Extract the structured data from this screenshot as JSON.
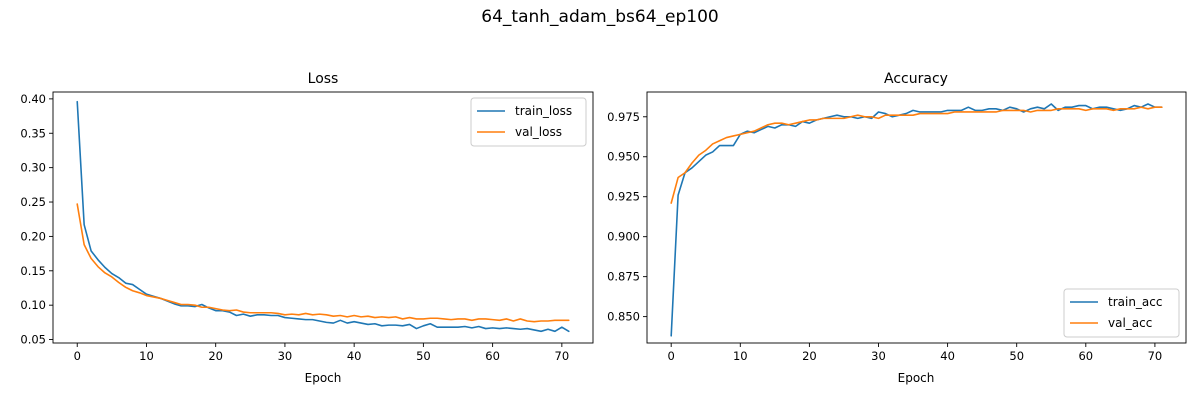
{
  "figure": {
    "suptitle": "64_tanh_adam_bs64_ep100"
  },
  "colors": {
    "train": "#1f77b4",
    "val": "#ff7f0e"
  },
  "chart_data": [
    {
      "type": "line",
      "title": "Loss",
      "xlabel": "Epoch",
      "ylabel": "",
      "xlim": [
        -3.5,
        74.5
      ],
      "ylim": [
        0.045,
        0.41
      ],
      "xticks": [
        "0",
        "10",
        "20",
        "30",
        "40",
        "50",
        "60",
        "70"
      ],
      "yticks": [
        "0.05",
        "0.10",
        "0.15",
        "0.20",
        "0.25",
        "0.30",
        "0.35",
        "0.40"
      ],
      "legend": "top-right",
      "grid": false,
      "x": [
        0,
        1,
        2,
        3,
        4,
        5,
        6,
        7,
        8,
        9,
        10,
        11,
        12,
        13,
        14,
        15,
        16,
        17,
        18,
        19,
        20,
        21,
        22,
        23,
        24,
        25,
        26,
        27,
        28,
        29,
        30,
        31,
        32,
        33,
        34,
        35,
        36,
        37,
        38,
        39,
        40,
        41,
        42,
        43,
        44,
        45,
        46,
        47,
        48,
        49,
        50,
        51,
        52,
        53,
        54,
        55,
        56,
        57,
        58,
        59,
        60,
        61,
        62,
        63,
        64,
        65,
        66,
        67,
        68,
        69,
        70,
        71
      ],
      "series": [
        {
          "name": "train_loss",
          "values": [
            0.396,
            0.217,
            0.179,
            0.166,
            0.155,
            0.146,
            0.14,
            0.132,
            0.13,
            0.123,
            0.116,
            0.113,
            0.11,
            0.106,
            0.102,
            0.099,
            0.099,
            0.098,
            0.101,
            0.096,
            0.092,
            0.092,
            0.09,
            0.085,
            0.087,
            0.084,
            0.086,
            0.086,
            0.085,
            0.085,
            0.082,
            0.081,
            0.08,
            0.079,
            0.079,
            0.077,
            0.075,
            0.074,
            0.078,
            0.074,
            0.076,
            0.074,
            0.072,
            0.073,
            0.07,
            0.071,
            0.071,
            0.07,
            0.072,
            0.066,
            0.07,
            0.073,
            0.068,
            0.068,
            0.068,
            0.068,
            0.069,
            0.067,
            0.069,
            0.066,
            0.067,
            0.066,
            0.067,
            0.066,
            0.065,
            0.066,
            0.064,
            0.062,
            0.065,
            0.062,
            0.068,
            0.062
          ]
        },
        {
          "name": "val_loss",
          "values": [
            0.247,
            0.188,
            0.168,
            0.156,
            0.147,
            0.141,
            0.133,
            0.126,
            0.121,
            0.118,
            0.114,
            0.112,
            0.11,
            0.107,
            0.104,
            0.101,
            0.101,
            0.1,
            0.097,
            0.097,
            0.095,
            0.093,
            0.092,
            0.093,
            0.09,
            0.089,
            0.089,
            0.089,
            0.089,
            0.088,
            0.086,
            0.087,
            0.086,
            0.088,
            0.086,
            0.087,
            0.086,
            0.084,
            0.085,
            0.083,
            0.085,
            0.083,
            0.084,
            0.082,
            0.083,
            0.082,
            0.083,
            0.08,
            0.082,
            0.08,
            0.08,
            0.081,
            0.081,
            0.08,
            0.079,
            0.08,
            0.08,
            0.078,
            0.08,
            0.08,
            0.079,
            0.078,
            0.08,
            0.077,
            0.08,
            0.077,
            0.076,
            0.077,
            0.077,
            0.078,
            0.078,
            0.078
          ]
        }
      ]
    },
    {
      "type": "line",
      "title": "Accuracy",
      "xlabel": "Epoch",
      "ylabel": "",
      "xlim": [
        -3.5,
        74.5
      ],
      "ylim": [
        0.8335,
        0.9905
      ],
      "xticks": [
        "0",
        "10",
        "20",
        "30",
        "40",
        "50",
        "60",
        "70"
      ],
      "yticks": [
        "0.850",
        "0.875",
        "0.900",
        "0.925",
        "0.950",
        "0.975"
      ],
      "legend": "bottom-right",
      "grid": false,
      "x": [
        0,
        1,
        2,
        3,
        4,
        5,
        6,
        7,
        8,
        9,
        10,
        11,
        12,
        13,
        14,
        15,
        16,
        17,
        18,
        19,
        20,
        21,
        22,
        23,
        24,
        25,
        26,
        27,
        28,
        29,
        30,
        31,
        32,
        33,
        34,
        35,
        36,
        37,
        38,
        39,
        40,
        41,
        42,
        43,
        44,
        45,
        46,
        47,
        48,
        49,
        50,
        51,
        52,
        53,
        54,
        55,
        56,
        57,
        58,
        59,
        60,
        61,
        62,
        63,
        64,
        65,
        66,
        67,
        68,
        69,
        70,
        71
      ],
      "series": [
        {
          "name": "train_acc",
          "values": [
            0.838,
            0.926,
            0.94,
            0.943,
            0.947,
            0.951,
            0.953,
            0.957,
            0.957,
            0.957,
            0.964,
            0.966,
            0.965,
            0.967,
            0.969,
            0.968,
            0.97,
            0.97,
            0.969,
            0.972,
            0.971,
            0.973,
            0.974,
            0.975,
            0.976,
            0.975,
            0.975,
            0.974,
            0.975,
            0.974,
            0.978,
            0.977,
            0.975,
            0.976,
            0.977,
            0.979,
            0.978,
            0.978,
            0.978,
            0.978,
            0.979,
            0.979,
            0.979,
            0.981,
            0.979,
            0.979,
            0.98,
            0.98,
            0.979,
            0.981,
            0.98,
            0.978,
            0.98,
            0.981,
            0.98,
            0.983,
            0.979,
            0.981,
            0.981,
            0.982,
            0.982,
            0.98,
            0.981,
            0.981,
            0.98,
            0.979,
            0.98,
            0.982,
            0.981,
            0.983,
            0.981,
            0.981
          ]
        },
        {
          "name": "val_acc",
          "values": [
            0.921,
            0.937,
            0.94,
            0.946,
            0.951,
            0.954,
            0.958,
            0.96,
            0.962,
            0.963,
            0.964,
            0.965,
            0.966,
            0.968,
            0.97,
            0.971,
            0.971,
            0.97,
            0.971,
            0.972,
            0.973,
            0.973,
            0.974,
            0.974,
            0.974,
            0.974,
            0.975,
            0.976,
            0.975,
            0.975,
            0.974,
            0.976,
            0.976,
            0.976,
            0.976,
            0.976,
            0.977,
            0.977,
            0.977,
            0.977,
            0.977,
            0.978,
            0.978,
            0.978,
            0.978,
            0.978,
            0.978,
            0.978,
            0.979,
            0.979,
            0.979,
            0.979,
            0.978,
            0.979,
            0.979,
            0.979,
            0.98,
            0.98,
            0.98,
            0.98,
            0.979,
            0.98,
            0.98,
            0.98,
            0.979,
            0.98,
            0.98,
            0.98,
            0.981,
            0.98,
            0.981,
            0.981
          ]
        }
      ]
    }
  ]
}
